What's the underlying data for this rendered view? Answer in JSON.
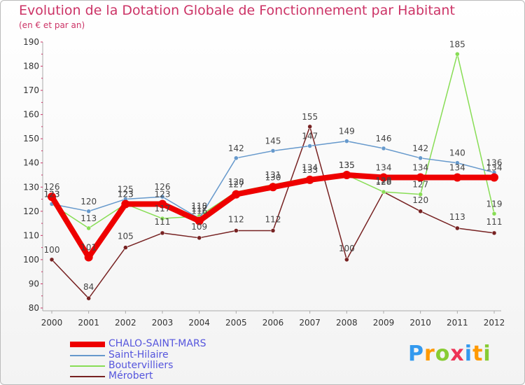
{
  "chart_data": {
    "type": "line",
    "title": "Evolution de la Dotation Globale de Fonctionnement par Habitant",
    "subtitle": "(en € et par an)",
    "xlabel": "",
    "ylabel": "",
    "categories": [
      "2000",
      "2001",
      "2002",
      "2003",
      "2004",
      "2005",
      "2006",
      "2007",
      "2008",
      "2009",
      "2010",
      "2011",
      "2012"
    ],
    "ylim": [
      80,
      190
    ],
    "yticks": [
      80,
      90,
      100,
      110,
      120,
      130,
      140,
      150,
      160,
      170,
      180,
      190
    ],
    "grid": false,
    "legend_position": "bottom-left",
    "series": [
      {
        "name": "CHALO-SAINT-MARS",
        "color": "#ee0000",
        "width": "thick",
        "values": [
          126,
          101,
          123,
          123,
          116,
          127,
          130,
          133,
          135,
          134,
          134,
          134,
          134
        ],
        "labels": [
          "126",
          "101",
          "123",
          "123",
          "116",
          "127",
          "130",
          "133",
          "135",
          "134",
          "134",
          "134",
          "134"
        ]
      },
      {
        "name": "Saint-Hilaire",
        "color": "#6699cc",
        "width": "thin",
        "values": [
          123,
          120,
          125,
          126,
          117,
          142,
          145,
          147,
          149,
          146,
          142,
          140,
          136
        ],
        "labels": [
          "123",
          "120",
          "125",
          "126",
          "117",
          "142",
          "145",
          "147",
          "149",
          "146",
          "142",
          "140",
          "136"
        ]
      },
      {
        "name": "Boutervilliers",
        "color": "#88dd55",
        "width": "thin",
        "values": [
          123,
          113,
          123,
          117,
          118,
          128,
          131,
          134,
          135,
          128,
          127,
          185,
          119
        ],
        "labels": [
          "123",
          "113",
          "123",
          "117",
          "118",
          "128",
          "131",
          "134",
          "135",
          "128",
          "127",
          "185",
          "119"
        ]
      },
      {
        "name": "Mérobert",
        "color": "#772222",
        "width": "thin",
        "values": [
          100,
          84,
          105,
          111,
          109,
          112,
          112,
          155,
          100,
          128,
          120,
          113,
          111
        ],
        "labels": [
          "100",
          "84",
          "105",
          "111",
          "109",
          "112",
          "112",
          "155",
          "100",
          "128",
          "120",
          "113",
          "111"
        ]
      }
    ]
  },
  "logo": {
    "text": "Proxiti",
    "letters": [
      {
        "ch": "P",
        "color": "#3399ee"
      },
      {
        "ch": "r",
        "color": "#ff9900"
      },
      {
        "ch": "o",
        "color": "#88cc33"
      },
      {
        "ch": "x",
        "color": "#ee3355"
      },
      {
        "ch": "i",
        "color": "#3399ee"
      },
      {
        "ch": "t",
        "color": "#ff9900"
      },
      {
        "ch": "i",
        "color": "#88cc33"
      }
    ]
  }
}
